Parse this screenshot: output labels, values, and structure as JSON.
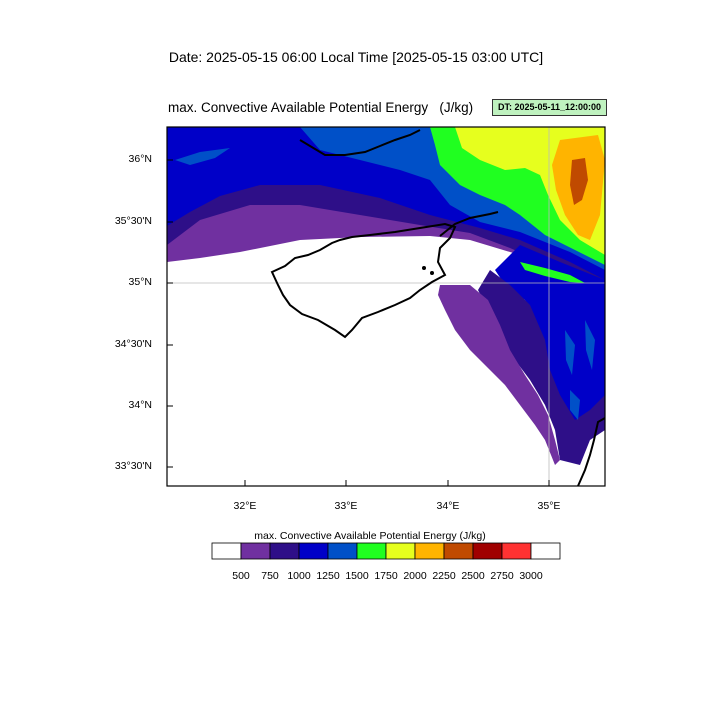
{
  "header": {
    "date_line": "Date: 2025-05-15  06:00 Local Time [2025-05-15  03:00 UTC]",
    "map_title": "max. Convective Available Potential Energy   (J/kg)",
    "dt_badge": "DT: 2025-05-11_12:00:00"
  },
  "axes": {
    "lat_labels": [
      "36°N",
      "35°30'N",
      "35°N",
      "34°30'N",
      "34°N",
      "33°30'N"
    ],
    "lon_labels": [
      "32°E",
      "33°E",
      "34°E",
      "35°E"
    ]
  },
  "colorbar": {
    "title": "max. Convective Available Potential Energy  (J/kg)",
    "levels": [
      "500",
      "750",
      "1000",
      "1250",
      "1500",
      "1750",
      "2000",
      "2250",
      "2500",
      "2750",
      "3000"
    ],
    "colors": [
      "#ffffff",
      "#7030a0",
      "#2e0f88",
      "#0000c8",
      "#0050c8",
      "#20ff20",
      "#e6ff1e",
      "#ffb400",
      "#c04a00",
      "#a00000",
      "#ff3232",
      "#ffffff"
    ]
  }
}
